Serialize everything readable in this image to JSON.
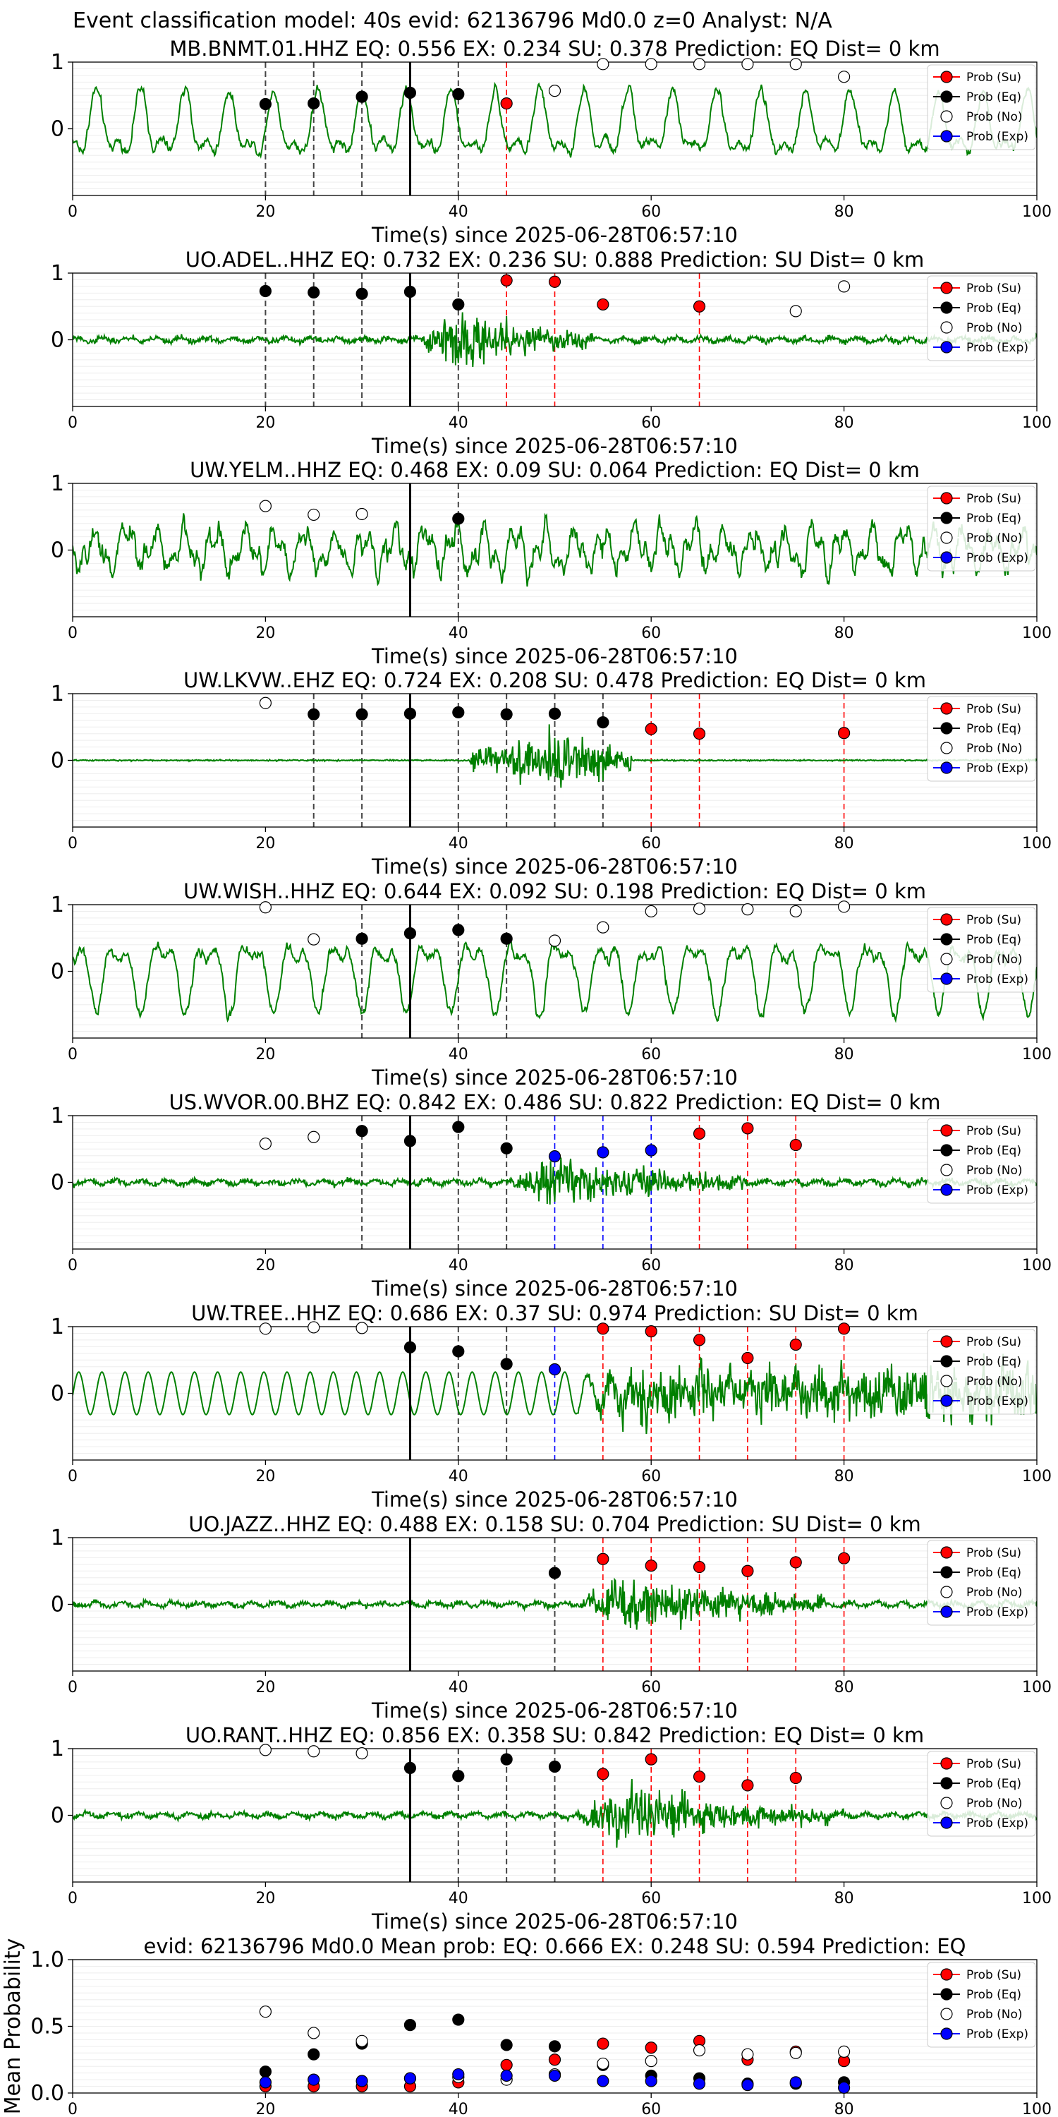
{
  "figure": {
    "suptitle": "Event classification model: 40s evid: 62136796 Md0.0 z=0 Analyst: N/A"
  },
  "legend": {
    "entries": [
      {
        "label": "Prob (Su)",
        "face": "#ff0000"
      },
      {
        "label": "Prob (Eq)",
        "face": "#000000"
      },
      {
        "label": "Prob (No)",
        "face": "#ffffff"
      },
      {
        "label": "Prob (Exp)",
        "face": "#0000ff"
      }
    ]
  },
  "colors": {
    "waveform": "#008000",
    "eq_line": "#444444",
    "su_line": "#ff0000",
    "exp_line": "#0000ff",
    "arrival_line": "#000000"
  },
  "chart_data": [
    {
      "type": "line",
      "title": "MB.BNMT.01.HHZ   EQ: 0.556  EX: 0.234  SU: 0.378   Prediction: EQ    Dist= 0 km",
      "xlabel": "Time(s) since 2025-06-28T06:57:10",
      "xlim": [
        0,
        100
      ],
      "ylim": [
        -1,
        1
      ],
      "xticks": [
        "0",
        "20",
        "40",
        "60",
        "80",
        "100"
      ],
      "yticks": [
        "1",
        "0"
      ],
      "grid": "y-minor",
      "legend": "top-right",
      "arrival": 35,
      "waveform": {
        "style": "lowfreq",
        "amplitude": 0.7
      },
      "vlines_eq": [
        20,
        25,
        30,
        40
      ],
      "vlines_su": [
        45
      ],
      "vlines_exp": [],
      "points": {
        "su": [
          [
            45,
            0.38
          ]
        ],
        "eq": [
          [
            20,
            0.37
          ],
          [
            25,
            0.38
          ],
          [
            30,
            0.48
          ],
          [
            35,
            0.54
          ],
          [
            40,
            0.52
          ]
        ],
        "no": [
          [
            50,
            0.57
          ],
          [
            55,
            0.97
          ],
          [
            60,
            0.97
          ],
          [
            65,
            0.97
          ],
          [
            70,
            0.97
          ],
          [
            75,
            0.97
          ],
          [
            80,
            0.78
          ]
        ],
        "exp": []
      }
    },
    {
      "type": "line",
      "title": "UO.ADEL..HHZ   EQ: 0.732  EX: 0.236  SU: 0.888   Prediction: SU    Dist= 0 km",
      "xlabel": "Time(s) since 2025-06-28T06:57:10",
      "xlim": [
        0,
        100
      ],
      "ylim": [
        -1,
        1
      ],
      "xticks": [
        "0",
        "20",
        "40",
        "60",
        "80",
        "100"
      ],
      "yticks": [
        "1",
        "0"
      ],
      "grid": "y-minor",
      "legend": "top-right",
      "arrival": 35,
      "waveform": {
        "style": "quiet_burst",
        "amplitude": 0.75,
        "burst_start": 36,
        "burst_end": 54
      },
      "vlines_eq": [
        20,
        25,
        30,
        40
      ],
      "vlines_su": [
        45,
        50,
        65
      ],
      "vlines_exp": [],
      "points": {
        "su": [
          [
            45,
            0.89
          ],
          [
            50,
            0.87
          ],
          [
            55,
            0.53
          ],
          [
            65,
            0.5
          ]
        ],
        "eq": [
          [
            20,
            0.73
          ],
          [
            25,
            0.71
          ],
          [
            30,
            0.69
          ],
          [
            35,
            0.72
          ],
          [
            40,
            0.53
          ]
        ],
        "no": [
          [
            75,
            0.43
          ],
          [
            80,
            0.8
          ]
        ],
        "exp": []
      }
    },
    {
      "type": "line",
      "title": "UW.YELM..HHZ   EQ: 0.468  EX: 0.09  SU: 0.064   Prediction: EQ    Dist= 0 km",
      "xlabel": "Time(s) since 2025-06-28T06:57:10",
      "xlim": [
        0,
        100
      ],
      "ylim": [
        -1,
        1
      ],
      "xticks": [
        "0",
        "20",
        "40",
        "60",
        "80",
        "100"
      ],
      "yticks": [
        "1",
        "0"
      ],
      "grid": "y-minor",
      "legend": "top-right",
      "arrival": 35,
      "waveform": {
        "style": "noisy_lowfreq",
        "amplitude": 0.6
      },
      "vlines_eq": [
        40
      ],
      "vlines_su": [],
      "vlines_exp": [],
      "points": {
        "su": [],
        "eq": [
          [
            40,
            0.47
          ]
        ],
        "no": [
          [
            20,
            0.66
          ],
          [
            25,
            0.53
          ],
          [
            30,
            0.54
          ]
        ],
        "exp": []
      }
    },
    {
      "type": "line",
      "title": "UW.LKVW..EHZ   EQ: 0.724  EX: 0.208  SU: 0.478   Prediction: EQ    Dist= 0 km",
      "xlabel": "Time(s) since 2025-06-28T06:57:10",
      "xlim": [
        0,
        100
      ],
      "ylim": [
        -1,
        1
      ],
      "xticks": [
        "0",
        "20",
        "40",
        "60",
        "80",
        "100"
      ],
      "yticks": [
        "1",
        "0"
      ],
      "grid": "y-minor",
      "legend": "top-right",
      "arrival": 35,
      "waveform": {
        "style": "flat_burst",
        "amplitude": 0.85,
        "burst_start": 41,
        "burst_end": 58
      },
      "vlines_eq": [
        25,
        30,
        40,
        45,
        50,
        55
      ],
      "vlines_su": [
        60,
        65,
        80
      ],
      "vlines_exp": [],
      "points": {
        "su": [
          [
            60,
            0.47
          ],
          [
            65,
            0.4
          ],
          [
            80,
            0.41
          ]
        ],
        "eq": [
          [
            25,
            0.69
          ],
          [
            30,
            0.69
          ],
          [
            35,
            0.7
          ],
          [
            40,
            0.72
          ],
          [
            45,
            0.69
          ],
          [
            50,
            0.7
          ],
          [
            55,
            0.57
          ]
        ],
        "no": [
          [
            20,
            0.86
          ]
        ],
        "exp": []
      }
    },
    {
      "type": "line",
      "title": "UW.WISH..HHZ   EQ: 0.644  EX: 0.092  SU: 0.198   Prediction: EQ    Dist= 0 km",
      "xlabel": "Time(s) since 2025-06-28T06:57:10",
      "xlim": [
        0,
        100
      ],
      "ylim": [
        -1,
        1
      ],
      "xticks": [
        "0",
        "20",
        "40",
        "60",
        "80",
        "100"
      ],
      "yticks": [
        "1",
        "0"
      ],
      "grid": "y-minor",
      "legend": "top-right",
      "arrival": 35,
      "waveform": {
        "style": "lowfreq",
        "amplitude": 0.75
      },
      "vlines_eq": [
        30,
        40,
        45
      ],
      "vlines_su": [],
      "vlines_exp": [],
      "points": {
        "su": [],
        "eq": [
          [
            30,
            0.49
          ],
          [
            35,
            0.57
          ],
          [
            40,
            0.62
          ],
          [
            45,
            0.49
          ]
        ],
        "no": [
          [
            20,
            0.96
          ],
          [
            25,
            0.48
          ],
          [
            50,
            0.46
          ],
          [
            55,
            0.66
          ],
          [
            60,
            0.9
          ],
          [
            65,
            0.94
          ],
          [
            70,
            0.93
          ],
          [
            75,
            0.9
          ],
          [
            80,
            0.97
          ]
        ],
        "exp": []
      }
    },
    {
      "type": "line",
      "title": "US.WVOR.00.BHZ   EQ: 0.842  EX: 0.486  SU: 0.822   Prediction: EQ    Dist= 0 km",
      "xlabel": "Time(s) since 2025-06-28T06:57:10",
      "xlim": [
        0,
        100
      ],
      "ylim": [
        -1,
        1
      ],
      "xticks": [
        "0",
        "20",
        "40",
        "60",
        "80",
        "100"
      ],
      "yticks": [
        "1",
        "0"
      ],
      "grid": "y-minor",
      "legend": "top-right",
      "arrival": 35,
      "waveform": {
        "style": "quiet_burst",
        "amplitude": 0.65,
        "burst_start": 45,
        "burst_end": 70
      },
      "vlines_eq": [
        30,
        40,
        45
      ],
      "vlines_su": [
        65,
        70,
        75
      ],
      "vlines_exp": [
        50,
        55,
        60
      ],
      "points": {
        "su": [
          [
            65,
            0.73
          ],
          [
            70,
            0.81
          ],
          [
            75,
            0.56
          ]
        ],
        "eq": [
          [
            30,
            0.77
          ],
          [
            35,
            0.62
          ],
          [
            40,
            0.83
          ],
          [
            45,
            0.51
          ]
        ],
        "no": [
          [
            20,
            0.58
          ],
          [
            25,
            0.68
          ]
        ],
        "exp": [
          [
            50,
            0.39
          ],
          [
            55,
            0.45
          ],
          [
            60,
            0.48
          ]
        ]
      }
    },
    {
      "type": "line",
      "title": "UW.TREE..HHZ   EQ: 0.686  EX: 0.37  SU: 0.974   Prediction: SU    Dist= 0 km",
      "xlabel": "Time(s) since 2025-06-28T06:57:10",
      "xlim": [
        0,
        100
      ],
      "ylim": [
        -1,
        1
      ],
      "xticks": [
        "0",
        "20",
        "40",
        "60",
        "80",
        "100"
      ],
      "yticks": [
        "1",
        "0"
      ],
      "grid": "y-minor",
      "legend": "top-right",
      "arrival": 35,
      "waveform": {
        "style": "sine_burst",
        "amplitude": 0.85,
        "burst_start": 52,
        "burst_end": 100
      },
      "vlines_eq": [
        40,
        45
      ],
      "vlines_su": [
        55,
        60,
        65,
        70,
        75,
        80
      ],
      "vlines_exp": [
        50
      ],
      "points": {
        "su": [
          [
            55,
            0.97
          ],
          [
            60,
            0.93
          ],
          [
            65,
            0.8
          ],
          [
            70,
            0.53
          ],
          [
            75,
            0.73
          ],
          [
            80,
            0.97
          ]
        ],
        "eq": [
          [
            35,
            0.69
          ],
          [
            40,
            0.63
          ],
          [
            45,
            0.44
          ]
        ],
        "no": [
          [
            20,
            0.97
          ],
          [
            25,
            0.99
          ],
          [
            30,
            0.98
          ]
        ],
        "exp": [
          [
            50,
            0.36
          ]
        ]
      }
    },
    {
      "type": "line",
      "title": "UO.JAZZ..HHZ   EQ: 0.488  EX: 0.158  SU: 0.704   Prediction: SU    Dist= 0 km",
      "xlabel": "Time(s) since 2025-06-28T06:57:10",
      "xlim": [
        0,
        100
      ],
      "ylim": [
        -1,
        1
      ],
      "xticks": [
        "0",
        "20",
        "40",
        "60",
        "80",
        "100"
      ],
      "yticks": [
        "1",
        "0"
      ],
      "grid": "y-minor",
      "legend": "top-right",
      "arrival": 35,
      "waveform": {
        "style": "quiet_burst",
        "amplitude": 0.75,
        "burst_start": 52,
        "burst_end": 78
      },
      "vlines_eq": [
        50
      ],
      "vlines_su": [
        55,
        60,
        65,
        70,
        75,
        80
      ],
      "vlines_exp": [],
      "points": {
        "su": [
          [
            55,
            0.68
          ],
          [
            60,
            0.58
          ],
          [
            65,
            0.56
          ],
          [
            70,
            0.5
          ],
          [
            75,
            0.63
          ],
          [
            80,
            0.69
          ]
        ],
        "eq": [
          [
            50,
            0.47
          ]
        ],
        "no": [],
        "exp": []
      }
    },
    {
      "type": "line",
      "title": "UO.RANT..HHZ   EQ: 0.856  EX: 0.358  SU: 0.842   Prediction: EQ    Dist= 0 km",
      "xlabel": "Time(s) since 2025-06-28T06:57:10",
      "xlim": [
        0,
        100
      ],
      "ylim": [
        -1,
        1
      ],
      "xticks": [
        "0",
        "20",
        "40",
        "60",
        "80",
        "100"
      ],
      "yticks": [
        "1",
        "0"
      ],
      "grid": "y-minor",
      "legend": "top-right",
      "arrival": 35,
      "waveform": {
        "style": "quiet_burst",
        "amplitude": 0.7,
        "burst_start": 52,
        "burst_end": 80
      },
      "vlines_eq": [
        40,
        45,
        50
      ],
      "vlines_su": [
        55,
        60,
        65,
        70,
        75
      ],
      "vlines_exp": [],
      "points": {
        "su": [
          [
            55,
            0.62
          ],
          [
            60,
            0.84
          ],
          [
            65,
            0.58
          ],
          [
            70,
            0.45
          ],
          [
            75,
            0.56
          ]
        ],
        "eq": [
          [
            35,
            0.71
          ],
          [
            40,
            0.59
          ],
          [
            45,
            0.84
          ],
          [
            50,
            0.73
          ]
        ],
        "no": [
          [
            20,
            0.98
          ],
          [
            25,
            0.96
          ],
          [
            30,
            0.93
          ]
        ],
        "exp": []
      }
    },
    {
      "type": "scatter",
      "title": "evid: 62136796  Md0.0    Mean prob:    EQ: 0.666  EX: 0.248  SU: 0.594   Prediction: EQ",
      "ylabel": "Mean Probability",
      "xlim": [
        0,
        100
      ],
      "ylim": [
        0,
        1
      ],
      "xticks": [
        "0",
        "20",
        "40",
        "60",
        "80",
        "100"
      ],
      "yticks": [
        "1.0",
        "0.5",
        "0.0"
      ],
      "grid": "y-minor",
      "legend": "top-right",
      "points": {
        "su": [
          [
            20,
            0.05
          ],
          [
            25,
            0.05
          ],
          [
            30,
            0.05
          ],
          [
            35,
            0.05
          ],
          [
            40,
            0.08
          ],
          [
            45,
            0.21
          ],
          [
            50,
            0.25
          ],
          [
            55,
            0.37
          ],
          [
            60,
            0.34
          ],
          [
            65,
            0.39
          ],
          [
            70,
            0.25
          ],
          [
            75,
            0.31
          ],
          [
            80,
            0.24
          ]
        ],
        "eq": [
          [
            20,
            0.16
          ],
          [
            25,
            0.29
          ],
          [
            30,
            0.37
          ],
          [
            35,
            0.51
          ],
          [
            40,
            0.55
          ],
          [
            45,
            0.36
          ],
          [
            50,
            0.35
          ],
          [
            55,
            0.21
          ],
          [
            60,
            0.13
          ],
          [
            65,
            0.11
          ],
          [
            70,
            0.07
          ],
          [
            75,
            0.07
          ],
          [
            80,
            0.08
          ]
        ],
        "no": [
          [
            20,
            0.61
          ],
          [
            25,
            0.45
          ],
          [
            30,
            0.39
          ],
          [
            35,
            0.11
          ],
          [
            40,
            0.12
          ],
          [
            45,
            0.1
          ],
          [
            50,
            0.14
          ],
          [
            55,
            0.22
          ],
          [
            60,
            0.24
          ],
          [
            65,
            0.32
          ],
          [
            70,
            0.29
          ],
          [
            75,
            0.3
          ],
          [
            80,
            0.31
          ]
        ],
        "exp": [
          [
            20,
            0.08
          ],
          [
            25,
            0.1
          ],
          [
            30,
            0.09
          ],
          [
            35,
            0.11
          ],
          [
            40,
            0.14
          ],
          [
            45,
            0.13
          ],
          [
            50,
            0.13
          ],
          [
            55,
            0.09
          ],
          [
            60,
            0.09
          ],
          [
            65,
            0.07
          ],
          [
            70,
            0.06
          ],
          [
            75,
            0.08
          ],
          [
            80,
            0.04
          ]
        ]
      }
    }
  ]
}
